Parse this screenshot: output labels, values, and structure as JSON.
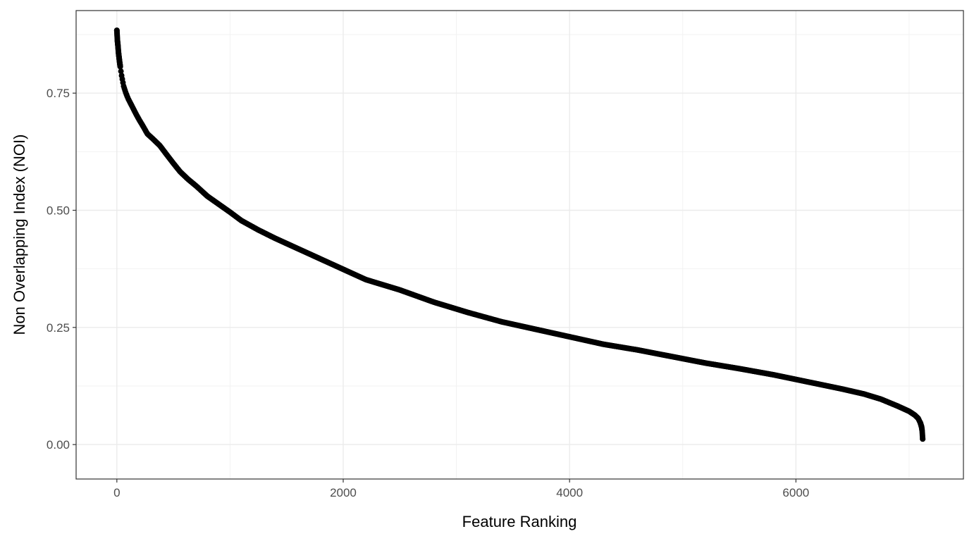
{
  "chart_data": {
    "type": "scatter",
    "xlabel": "Feature Ranking",
    "ylabel": "Non Overlapping Index (NOI)",
    "xlim": [
      -360,
      7480
    ],
    "ylim": [
      -0.0735,
      0.9262
    ],
    "x_ticks": [
      0,
      2000,
      4000,
      6000
    ],
    "y_ticks": [
      0.0,
      0.25,
      0.5,
      0.75
    ],
    "x_tick_labels": [
      "0",
      "2000",
      "4000",
      "6000"
    ],
    "y_tick_labels": [
      "0.00",
      "0.25",
      "0.50",
      "0.75"
    ],
    "grid": true,
    "point_color": "#000000",
    "n_points": 7120,
    "curve": [
      [
        0,
        0.884
      ],
      [
        5,
        0.862
      ],
      [
        10,
        0.85
      ],
      [
        15,
        0.835
      ],
      [
        25,
        0.815
      ],
      [
        40,
        0.79
      ],
      [
        60,
        0.765
      ],
      [
        80,
        0.75
      ],
      [
        100,
        0.738
      ],
      [
        130,
        0.724
      ],
      [
        170,
        0.705
      ],
      [
        200,
        0.692
      ],
      [
        230,
        0.68
      ],
      [
        270,
        0.663
      ],
      [
        320,
        0.652
      ],
      [
        380,
        0.638
      ],
      [
        430,
        0.622
      ],
      [
        500,
        0.6
      ],
      [
        560,
        0.582
      ],
      [
        630,
        0.566
      ],
      [
        700,
        0.552
      ],
      [
        800,
        0.53
      ],
      [
        900,
        0.513
      ],
      [
        1000,
        0.496
      ],
      [
        1100,
        0.478
      ],
      [
        1250,
        0.458
      ],
      [
        1400,
        0.44
      ],
      [
        1600,
        0.418
      ],
      [
        1800,
        0.396
      ],
      [
        2000,
        0.374
      ],
      [
        2200,
        0.352
      ],
      [
        2500,
        0.33
      ],
      [
        2800,
        0.304
      ],
      [
        3100,
        0.282
      ],
      [
        3400,
        0.262
      ],
      [
        3700,
        0.246
      ],
      [
        4000,
        0.23
      ],
      [
        4300,
        0.214
      ],
      [
        4600,
        0.202
      ],
      [
        4900,
        0.188
      ],
      [
        5200,
        0.174
      ],
      [
        5500,
        0.162
      ],
      [
        5800,
        0.149
      ],
      [
        6000,
        0.139
      ],
      [
        6200,
        0.129
      ],
      [
        6400,
        0.119
      ],
      [
        6600,
        0.108
      ],
      [
        6750,
        0.097
      ],
      [
        6900,
        0.082
      ],
      [
        7000,
        0.071
      ],
      [
        7050,
        0.063
      ],
      [
        7080,
        0.056
      ],
      [
        7100,
        0.046
      ],
      [
        7110,
        0.038
      ],
      [
        7115,
        0.03
      ],
      [
        7120,
        0.012
      ]
    ]
  }
}
